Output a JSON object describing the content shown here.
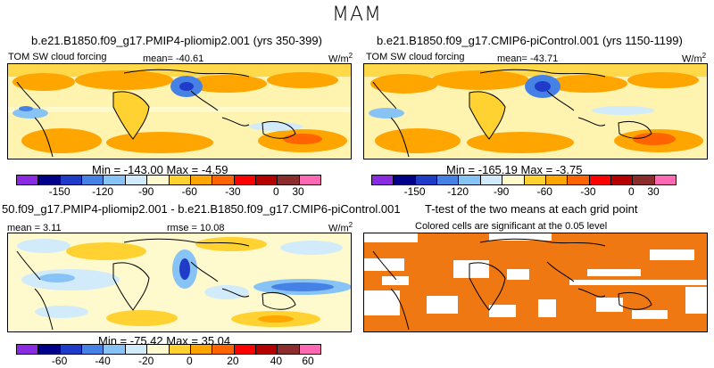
{
  "figure": {
    "season": "MAM"
  },
  "panels": {
    "top_left": {
      "title": "b.e21.B1850.f09_g17.PMIP4-pliomip2.001 (yrs 350-399)",
      "field": "TOM SW cloud forcing",
      "mean_label": "mean= -40.61",
      "units": "W/m",
      "units_sup": "2",
      "minmax": "Min = -143.00  Max =   -4.59"
    },
    "top_right": {
      "title": "b.e21.B1850.f09_g17.CMIP6-piControl.001 (yrs 1150-1199)",
      "field": "TOM SW cloud forcing",
      "mean_label": "mean= -43.71",
      "units": "W/m",
      "units_sup": "2",
      "minmax": "Min = -165.19  Max =   -3.75"
    },
    "bottom_left": {
      "title": "50.f09_g17.PMIP4-pliomip2.001 - b.e21.B1850.f09_g17.CMIP6-piControl.001",
      "mean_label": "mean =   3.11",
      "rmse_label": "rmse =  10.08",
      "units": "W/m",
      "units_sup": "2",
      "minmax": "Min = -75.42  Max =  35.04"
    },
    "bottom_right": {
      "title": "T-test of the two means at each grid point",
      "subtitle": "Colored cells are significant at the 0.05 level"
    }
  },
  "colorbars": {
    "abs": {
      "colors": [
        "#8a2be2",
        "#00008b",
        "#1e3cc8",
        "#4682e6",
        "#87c3f5",
        "#d2ebfa",
        "#fffacd",
        "#ffd232",
        "#ffa500",
        "#ff6400",
        "#ff0000",
        "#b40000",
        "#8c2d2d",
        "#ff69b4"
      ],
      "ticks": [
        "-150",
        "-120",
        "-90",
        "-60",
        "-30",
        "0",
        "30"
      ]
    },
    "diff": {
      "colors": [
        "#8a2be2",
        "#00008b",
        "#1e3cc8",
        "#4682e6",
        "#87c3f5",
        "#d2ebfa",
        "#fffacd",
        "#ffd232",
        "#ffa500",
        "#ff6400",
        "#ff0000",
        "#b40000",
        "#8c2d2d",
        "#ff69b4"
      ],
      "ticks": [
        "-60",
        "-40",
        "-20",
        "0",
        "20",
        "40",
        "60"
      ]
    }
  }
}
